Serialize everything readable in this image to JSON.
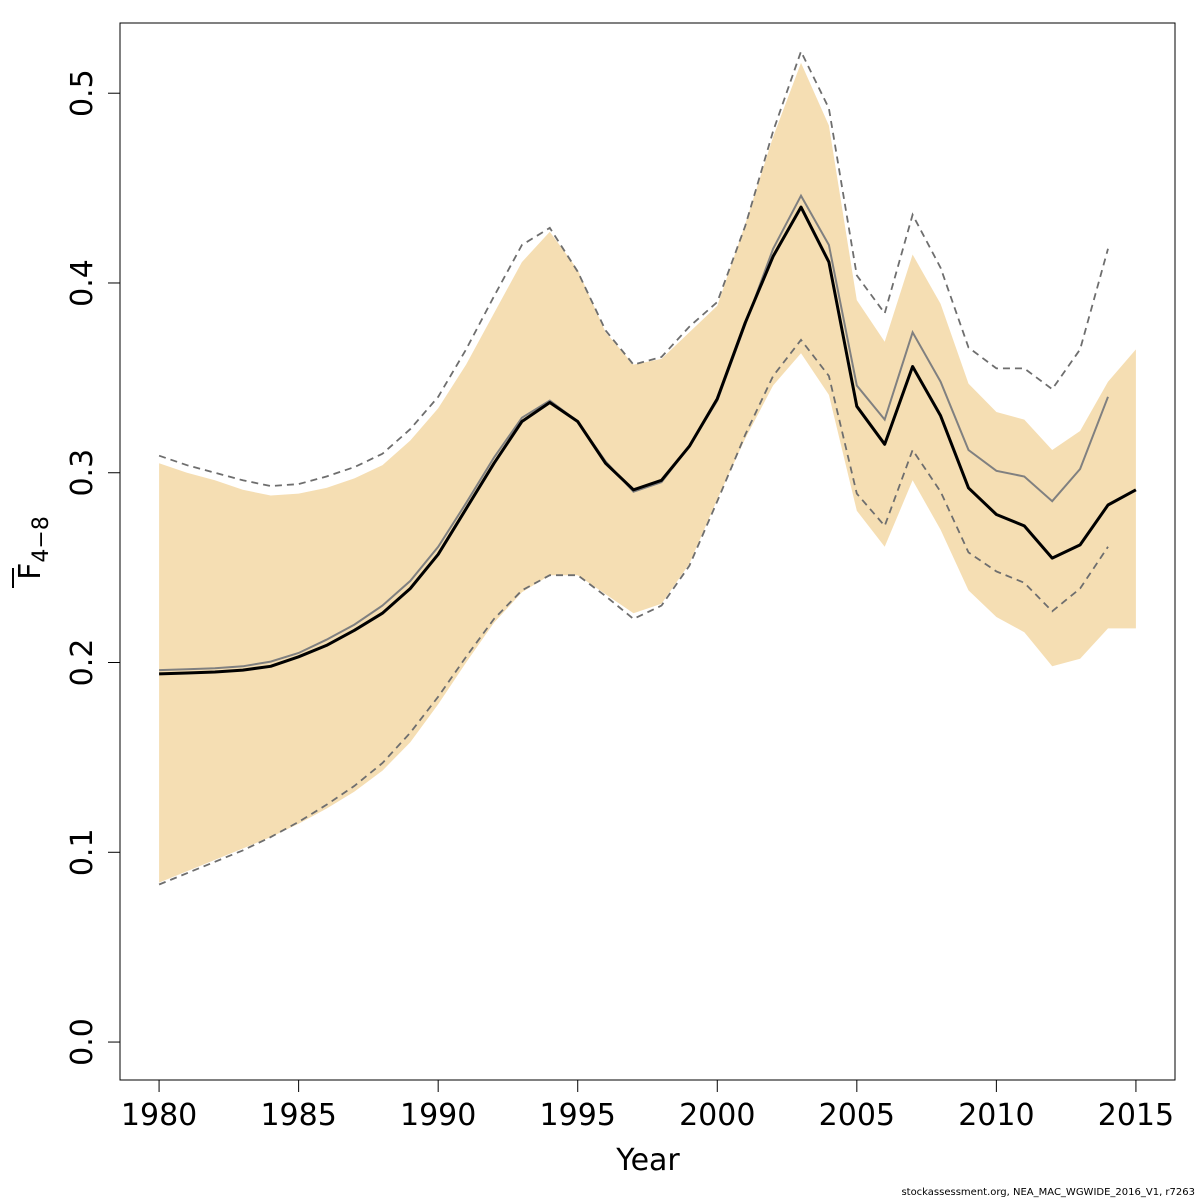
{
  "chart_data": {
    "type": "line",
    "title": "",
    "xlabel": "Year",
    "ylabel": {
      "main": "F",
      "sub": "4−8"
    },
    "xlim": [
      1978.6,
      2016.4
    ],
    "ylim": [
      -0.02,
      0.537
    ],
    "x_ticks": [
      1980,
      1985,
      1990,
      1995,
      2000,
      2005,
      2010,
      2015
    ],
    "y_ticks": [
      0.0,
      0.1,
      0.2,
      0.3,
      0.4,
      0.5
    ],
    "y_tick_labels": [
      "0.0",
      "0.1",
      "0.2",
      "0.3",
      "0.4",
      "0.5"
    ],
    "grid": false,
    "legend": null,
    "colors": {
      "band": "#f5deb3",
      "estimate": "#000000",
      "previous": "#808080",
      "previous_ci": "#6e6e6e"
    },
    "series": [
      {
        "role": "estimate",
        "x": [
          1980,
          1981,
          1982,
          1983,
          1984,
          1985,
          1986,
          1987,
          1988,
          1989,
          1990,
          1991,
          1992,
          1993,
          1994,
          1995,
          1996,
          1997,
          1998,
          1999,
          2000,
          2001,
          2002,
          2003,
          2004,
          2005,
          2006,
          2007,
          2008,
          2009,
          2010,
          2011,
          2012,
          2013,
          2014,
          2015
        ],
        "values": [
          0.194,
          0.1945,
          0.195,
          0.196,
          0.198,
          0.203,
          0.209,
          0.217,
          0.226,
          0.239,
          0.257,
          0.281,
          0.305,
          0.327,
          0.337,
          0.327,
          0.305,
          0.291,
          0.296,
          0.314,
          0.339,
          0.379,
          0.414,
          0.44,
          0.411,
          0.335,
          0.315,
          0.356,
          0.33,
          0.292,
          0.278,
          0.272,
          0.255,
          0.262,
          0.283,
          0.291
        ]
      },
      {
        "role": "band",
        "x": [
          1980,
          1981,
          1982,
          1983,
          1984,
          1985,
          1986,
          1987,
          1988,
          1989,
          1990,
          1991,
          1992,
          1993,
          1994,
          1995,
          1996,
          1997,
          1998,
          1999,
          2000,
          2001,
          2002,
          2003,
          2004,
          2005,
          2006,
          2007,
          2008,
          2009,
          2010,
          2011,
          2012,
          2013,
          2014,
          2015
        ],
        "lower": [
          0.084,
          0.09,
          0.096,
          0.102,
          0.108,
          0.115,
          0.123,
          0.132,
          0.143,
          0.158,
          0.178,
          0.2,
          0.221,
          0.237,
          0.246,
          0.246,
          0.236,
          0.226,
          0.231,
          0.252,
          0.286,
          0.318,
          0.346,
          0.363,
          0.341,
          0.28,
          0.261,
          0.296,
          0.27,
          0.238,
          0.224,
          0.216,
          0.198,
          0.202,
          0.218,
          0.218
        ],
        "upper": [
          0.305,
          0.3,
          0.296,
          0.291,
          0.288,
          0.289,
          0.292,
          0.297,
          0.304,
          0.317,
          0.334,
          0.357,
          0.384,
          0.411,
          0.427,
          0.407,
          0.374,
          0.357,
          0.36,
          0.374,
          0.388,
          0.431,
          0.477,
          0.516,
          0.483,
          0.391,
          0.369,
          0.415,
          0.389,
          0.347,
          0.332,
          0.328,
          0.312,
          0.322,
          0.348,
          0.365
        ]
      },
      {
        "role": "previous",
        "x": [
          1980,
          1981,
          1982,
          1983,
          1984,
          1985,
          1986,
          1987,
          1988,
          1989,
          1990,
          1991,
          1992,
          1993,
          1994,
          1995,
          1996,
          1997,
          1998,
          1999,
          2000,
          2001,
          2002,
          2003,
          2004,
          2005,
          2006,
          2007,
          2008,
          2009,
          2010,
          2011,
          2012,
          2013,
          2014
        ],
        "values": [
          0.196,
          0.1965,
          0.197,
          0.198,
          0.2005,
          0.205,
          0.212,
          0.22,
          0.23,
          0.243,
          0.261,
          0.284,
          0.308,
          0.329,
          0.338,
          0.327,
          0.306,
          0.29,
          0.295,
          0.314,
          0.338,
          0.378,
          0.418,
          0.446,
          0.42,
          0.346,
          0.328,
          0.374,
          0.348,
          0.312,
          0.301,
          0.298,
          0.285,
          0.302,
          0.34
        ]
      },
      {
        "role": "previous_ci",
        "x": [
          1980,
          1981,
          1982,
          1983,
          1984,
          1985,
          1986,
          1987,
          1988,
          1989,
          1990,
          1991,
          1992,
          1993,
          1994,
          1995,
          1996,
          1997,
          1998,
          1999,
          2000,
          2001,
          2002,
          2003,
          2004,
          2005,
          2006,
          2007,
          2008,
          2009,
          2010,
          2011,
          2012,
          2013,
          2014
        ],
        "lower": [
          0.083,
          0.089,
          0.095,
          0.101,
          0.108,
          0.116,
          0.125,
          0.135,
          0.147,
          0.163,
          0.182,
          0.203,
          0.223,
          0.238,
          0.246,
          0.246,
          0.235,
          0.223,
          0.23,
          0.251,
          0.285,
          0.32,
          0.351,
          0.37,
          0.351,
          0.289,
          0.272,
          0.312,
          0.29,
          0.258,
          0.248,
          0.242,
          0.227,
          0.239,
          0.261
        ],
        "upper": [
          0.309,
          0.304,
          0.3,
          0.296,
          0.293,
          0.294,
          0.298,
          0.303,
          0.31,
          0.323,
          0.34,
          0.365,
          0.393,
          0.42,
          0.429,
          0.406,
          0.375,
          0.357,
          0.361,
          0.377,
          0.39,
          0.43,
          0.48,
          0.522,
          0.492,
          0.404,
          0.384,
          0.436,
          0.408,
          0.366,
          0.355,
          0.355,
          0.344,
          0.365,
          0.418
        ]
      }
    ]
  },
  "footer": "stockassessment.org, NEA_MAC_WGWIDE_2016_V1, r7263"
}
